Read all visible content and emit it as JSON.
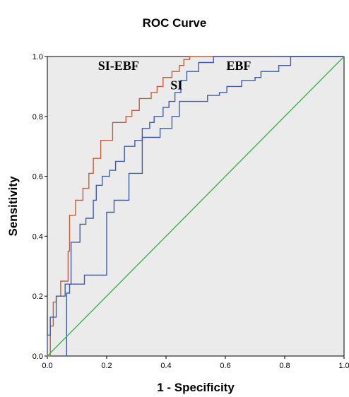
{
  "chart_data": {
    "type": "line",
    "title": "ROC Curve",
    "xlabel": "1 - Specificity",
    "ylabel": "Sensitivity",
    "xlim": [
      0,
      1
    ],
    "ylim": [
      0,
      1
    ],
    "x_ticks": [
      "0.0",
      "0.2",
      "0.4",
      "0.6",
      "0.8",
      "1.0"
    ],
    "y_ticks": [
      "0.0",
      "0.2",
      "0.4",
      "0.6",
      "0.8",
      "1.0"
    ],
    "grid": false,
    "background_color": "#ebebeb",
    "annotations": [
      {
        "text": "SI-EBF",
        "x": 0.24,
        "y": 0.955
      },
      {
        "text": "SI",
        "x": 0.435,
        "y": 0.89
      },
      {
        "text": "EBF",
        "x": 0.645,
        "y": 0.955
      }
    ],
    "series": [
      {
        "name": "SI-EBF",
        "color": "#c0603a",
        "x": [
          0,
          0.01,
          0.01,
          0.02,
          0.02,
          0.03,
          0.03,
          0.045,
          0.045,
          0.07,
          0.07,
          0.075,
          0.075,
          0.095,
          0.095,
          0.12,
          0.12,
          0.14,
          0.14,
          0.155,
          0.155,
          0.18,
          0.18,
          0.22,
          0.22,
          0.265,
          0.265,
          0.285,
          0.285,
          0.31,
          0.31,
          0.35,
          0.35,
          0.37,
          0.37,
          0.39,
          0.39,
          0.42,
          0.42,
          0.445,
          0.445,
          0.46,
          0.46,
          0.48,
          0.48,
          0.5,
          0.5,
          1.0
        ],
        "y": [
          0,
          0,
          0.1,
          0.1,
          0.18,
          0.18,
          0.2,
          0.2,
          0.25,
          0.25,
          0.35,
          0.35,
          0.47,
          0.47,
          0.52,
          0.52,
          0.56,
          0.56,
          0.61,
          0.61,
          0.66,
          0.66,
          0.72,
          0.72,
          0.78,
          0.78,
          0.8,
          0.8,
          0.82,
          0.82,
          0.86,
          0.86,
          0.88,
          0.88,
          0.9,
          0.9,
          0.93,
          0.93,
          0.95,
          0.95,
          0.97,
          0.97,
          0.99,
          0.99,
          1.0,
          1.0,
          1.0,
          1.0
        ]
      },
      {
        "name": "SI",
        "color": "#3f5da8",
        "x": [
          0,
          0,
          0.01,
          0.01,
          0.03,
          0.03,
          0.06,
          0.06,
          0.08,
          0.08,
          0.11,
          0.11,
          0.13,
          0.13,
          0.155,
          0.155,
          0.165,
          0.165,
          0.185,
          0.185,
          0.21,
          0.21,
          0.23,
          0.23,
          0.26,
          0.26,
          0.295,
          0.295,
          0.32,
          0.32,
          0.345,
          0.345,
          0.36,
          0.36,
          0.39,
          0.39,
          0.41,
          0.41,
          0.43,
          0.43,
          0.45,
          0.45,
          0.47,
          0.47,
          0.51,
          0.51,
          0.56,
          0.56,
          1.0
        ],
        "y": [
          0,
          0.07,
          0.07,
          0.13,
          0.13,
          0.2,
          0.2,
          0.24,
          0.24,
          0.38,
          0.38,
          0.44,
          0.44,
          0.46,
          0.46,
          0.52,
          0.52,
          0.57,
          0.57,
          0.6,
          0.6,
          0.62,
          0.62,
          0.65,
          0.65,
          0.7,
          0.7,
          0.72,
          0.72,
          0.76,
          0.76,
          0.78,
          0.78,
          0.8,
          0.8,
          0.83,
          0.83,
          0.85,
          0.85,
          0.88,
          0.88,
          0.92,
          0.92,
          0.95,
          0.95,
          0.98,
          0.98,
          1.0,
          1.0
        ]
      },
      {
        "name": "EBF",
        "color": "#3f5da8",
        "x": [
          0.065,
          0.065,
          0.075,
          0.075,
          0.125,
          0.125,
          0.2,
          0.2,
          0.225,
          0.225,
          0.275,
          0.275,
          0.32,
          0.32,
          0.38,
          0.38,
          0.42,
          0.42,
          0.445,
          0.445,
          0.54,
          0.54,
          0.58,
          0.58,
          0.605,
          0.605,
          0.655,
          0.655,
          0.7,
          0.7,
          0.72,
          0.72,
          0.78,
          0.78,
          0.82,
          0.82,
          0.865,
          0.865,
          1.0
        ],
        "y": [
          0.0,
          0.21,
          0.21,
          0.24,
          0.24,
          0.27,
          0.27,
          0.48,
          0.48,
          0.52,
          0.52,
          0.61,
          0.61,
          0.73,
          0.73,
          0.76,
          0.76,
          0.8,
          0.8,
          0.85,
          0.85,
          0.87,
          0.87,
          0.88,
          0.88,
          0.9,
          0.9,
          0.92,
          0.92,
          0.93,
          0.93,
          0.95,
          0.95,
          0.97,
          0.97,
          1.0,
          1.0,
          1.0,
          1.0
        ]
      },
      {
        "name": "Reference Line",
        "color": "#3cb34a",
        "x": [
          0,
          1
        ],
        "y": [
          0,
          1
        ]
      }
    ]
  }
}
